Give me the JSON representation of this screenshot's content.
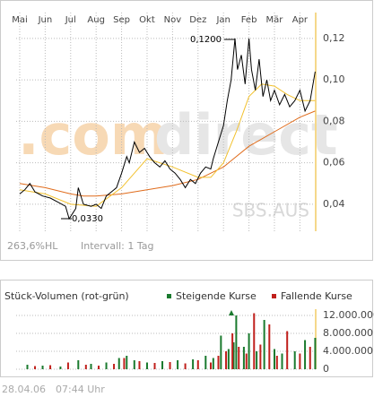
{
  "chart_data": [
    {
      "type": "line",
      "symbol": "SBS.AUS",
      "watermark": [
        ".com",
        "direct"
      ],
      "annotations": [
        "0,1200",
        "0,0330"
      ],
      "footer": [
        "263,6%HL",
        "Intervall: 1 Tag"
      ],
      "xticks": [
        {
          "value": 0,
          "label": "Mai"
        },
        {
          "value": 1,
          "label": "Jun"
        },
        {
          "value": 2,
          "label": "Jul"
        },
        {
          "value": 3,
          "label": "Aug"
        },
        {
          "value": 4,
          "label": "Sep"
        },
        {
          "value": 5,
          "label": "Okt"
        },
        {
          "value": 6,
          "label": "Nov"
        },
        {
          "value": 7,
          "label": "Dez"
        },
        {
          "value": 8,
          "label": "Jan"
        },
        {
          "value": 9,
          "label": "Feb"
        },
        {
          "value": 10,
          "label": "Mär"
        },
        {
          "value": 11,
          "label": "Apr"
        }
      ],
      "xlim": [
        -0.14,
        11.62
      ],
      "ylim": [
        0.027,
        0.1325
      ],
      "yticks": [
        {
          "value": 0.04,
          "label": "0,04"
        },
        {
          "value": 0.06,
          "label": "0,06"
        },
        {
          "value": 0.08,
          "label": "0,08"
        },
        {
          "value": 0.1,
          "label": "0,10"
        },
        {
          "value": 0.12,
          "label": "0,12"
        }
      ],
      "grid": true,
      "series": [
        {
          "color": "#e06c1c",
          "x": [
            0,
            1,
            2,
            2.5,
            3,
            4,
            5,
            6,
            7,
            8,
            9,
            10,
            11,
            11.6
          ],
          "values": [
            0.05,
            0.048,
            0.045,
            0.044,
            0.044,
            0.045,
            0.047,
            0.049,
            0.052,
            0.058,
            0.068,
            0.075,
            0.082,
            0.085
          ]
        },
        {
          "color": "#f2c12e",
          "x": [
            0,
            1,
            2,
            3,
            4,
            5,
            6,
            7,
            7.5,
            8,
            8.5,
            9,
            9.5,
            10,
            10.5,
            11,
            11.6
          ],
          "values": [
            0.047,
            0.045,
            0.04,
            0.039,
            0.048,
            0.062,
            0.058,
            0.053,
            0.053,
            0.06,
            0.075,
            0.092,
            0.098,
            0.097,
            0.093,
            0.09,
            0.09
          ]
        },
        {
          "color": "#000000",
          "x": [
            0,
            0.2,
            0.4,
            0.6,
            0.9,
            1.2,
            1.5,
            1.8,
            1.94,
            2.1,
            2.2,
            2.3,
            2.5,
            2.8,
            3.0,
            3.2,
            3.4,
            3.6,
            3.8,
            4.0,
            4.2,
            4.3,
            4.5,
            4.7,
            4.9,
            5.1,
            5.3,
            5.5,
            5.7,
            5.9,
            6.1,
            6.3,
            6.5,
            6.7,
            6.9,
            7.1,
            7.3,
            7.5,
            7.6,
            7.8,
            8.0,
            8.15,
            8.3,
            8.45,
            8.55,
            8.7,
            8.85,
            9.0,
            9.1,
            9.25,
            9.4,
            9.55,
            9.7,
            9.85,
            10.0,
            10.2,
            10.4,
            10.6,
            10.8,
            11.0,
            11.2,
            11.4,
            11.6
          ],
          "values": [
            0.045,
            0.047,
            0.05,
            0.046,
            0.044,
            0.043,
            0.041,
            0.039,
            0.033,
            0.036,
            0.038,
            0.048,
            0.04,
            0.039,
            0.04,
            0.038,
            0.044,
            0.046,
            0.048,
            0.055,
            0.063,
            0.06,
            0.07,
            0.065,
            0.067,
            0.063,
            0.06,
            0.058,
            0.061,
            0.057,
            0.055,
            0.052,
            0.048,
            0.052,
            0.05,
            0.055,
            0.058,
            0.057,
            0.062,
            0.07,
            0.078,
            0.09,
            0.1,
            0.12,
            0.105,
            0.112,
            0.098,
            0.12,
            0.105,
            0.095,
            0.11,
            0.092,
            0.1,
            0.09,
            0.095,
            0.088,
            0.093,
            0.087,
            0.09,
            0.095,
            0.085,
            0.09,
            0.104
          ]
        }
      ]
    },
    {
      "type": "bar",
      "title": "Stück-Volumen (rot-grün)",
      "xlim": [
        -0.14,
        11.62
      ],
      "ylim": [
        0,
        13400000
      ],
      "yticks": [
        {
          "value": 0,
          "label": "0"
        },
        {
          "value": 4000000,
          "label": "4.000.000"
        },
        {
          "value": 8000000,
          "label": "8.000.000"
        },
        {
          "value": 12000000,
          "label": "12.000.000"
        }
      ],
      "grid": true,
      "series": [
        {
          "name": "Steigende Kurse",
          "color": "#1a7a2e",
          "x": [
            0.3,
            0.9,
            1.6,
            2.3,
            2.8,
            3.4,
            3.9,
            4.2,
            4.5,
            5.0,
            5.6,
            6.2,
            6.8,
            7.3,
            7.6,
            7.9,
            8.2,
            8.4,
            8.5,
            8.8,
            9.0,
            9.3,
            9.6,
            10.0,
            10.3,
            10.8,
            11.2,
            11.6
          ],
          "values": [
            1000000,
            800000,
            600000,
            2000000,
            1200000,
            1500000,
            2500000,
            3000000,
            2000000,
            1500000,
            1800000,
            2000000,
            2200000,
            3000000,
            2500000,
            7500000,
            4500000,
            6000000,
            12000000,
            5000000,
            8000000,
            4000000,
            11000000,
            4500000,
            3500000,
            4000000,
            6500000,
            7000000
          ]
        },
        {
          "name": "Fallende Kurse",
          "color": "#c0201c",
          "x": [
            0.6,
            1.2,
            1.9,
            2.6,
            3.1,
            3.7,
            4.1,
            4.7,
            5.3,
            5.9,
            6.5,
            7.0,
            7.5,
            7.8,
            8.1,
            8.35,
            8.6,
            8.9,
            9.2,
            9.45,
            9.8,
            10.1,
            10.5,
            11.0,
            11.4
          ],
          "values": [
            700000,
            900000,
            1500000,
            1000000,
            800000,
            1200000,
            2500000,
            1800000,
            1400000,
            1600000,
            1300000,
            2000000,
            1500000,
            3000000,
            4000000,
            8000000,
            5000000,
            3500000,
            12500000,
            5500000,
            10000000,
            3000000,
            8500000,
            3500000,
            5000000
          ]
        }
      ]
    }
  ],
  "timestamp": [
    "28.04.06",
    "07:44 Uhr"
  ]
}
